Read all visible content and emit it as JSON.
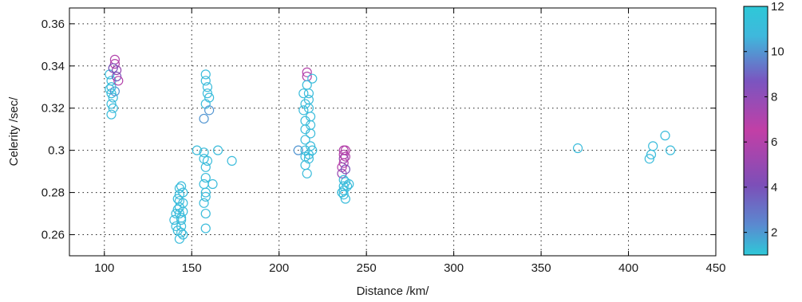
{
  "chart_data": {
    "type": "scatter",
    "title": "",
    "xlabel": "Distance /km/",
    "ylabel": "Celerity /sec/",
    "xlim": [
      80,
      450
    ],
    "ylim": [
      0.25,
      0.3675
    ],
    "xticks": [
      100,
      150,
      200,
      250,
      300,
      350,
      400,
      450
    ],
    "yticks": [
      0.26,
      0.28,
      0.3,
      0.32,
      0.34,
      0.36
    ],
    "ytick_labels": [
      "0.26",
      "0.28",
      "0.3",
      "0.32",
      "0.34",
      "0.36"
    ],
    "grid": true,
    "marker": "open-circle",
    "colorbar": {
      "range": [
        1,
        12
      ],
      "ticks": [
        2,
        4,
        6,
        8,
        10,
        12
      ],
      "colors": [
        "#2ec8d8",
        "#5a8ad0",
        "#7c4fb8",
        "#c23fa6",
        "#7a55c0",
        "#3fb8dc",
        "#2ec8d8"
      ],
      "stops": [
        0,
        0.12,
        0.28,
        0.5,
        0.7,
        0.88,
        1
      ]
    },
    "points": [
      {
        "x": 103,
        "y": 0.336,
        "c": 11
      },
      {
        "x": 104,
        "y": 0.333,
        "c": 11
      },
      {
        "x": 104,
        "y": 0.33,
        "c": 11
      },
      {
        "x": 104,
        "y": 0.327,
        "c": 11
      },
      {
        "x": 105,
        "y": 0.325,
        "c": 11
      },
      {
        "x": 104,
        "y": 0.322,
        "c": 11
      },
      {
        "x": 105,
        "y": 0.32,
        "c": 11
      },
      {
        "x": 104,
        "y": 0.317,
        "c": 11
      },
      {
        "x": 103,
        "y": 0.329,
        "c": 11
      },
      {
        "x": 106,
        "y": 0.328,
        "c": 10
      },
      {
        "x": 106,
        "y": 0.341,
        "c": 6
      },
      {
        "x": 107,
        "y": 0.338,
        "c": 5
      },
      {
        "x": 107,
        "y": 0.335,
        "c": 4
      },
      {
        "x": 108,
        "y": 0.333,
        "c": 6
      },
      {
        "x": 106,
        "y": 0.343,
        "c": 7
      },
      {
        "x": 105,
        "y": 0.339,
        "c": 4
      },
      {
        "x": 140,
        "y": 0.267,
        "c": 11
      },
      {
        "x": 141,
        "y": 0.264,
        "c": 11
      },
      {
        "x": 141,
        "y": 0.27,
        "c": 11
      },
      {
        "x": 142,
        "y": 0.262,
        "c": 11
      },
      {
        "x": 143,
        "y": 0.282,
        "c": 11
      },
      {
        "x": 143,
        "y": 0.279,
        "c": 11
      },
      {
        "x": 143,
        "y": 0.276,
        "c": 11
      },
      {
        "x": 143,
        "y": 0.273,
        "c": 11
      },
      {
        "x": 143,
        "y": 0.27,
        "c": 11
      },
      {
        "x": 144,
        "y": 0.267,
        "c": 11
      },
      {
        "x": 144,
        "y": 0.264,
        "c": 11
      },
      {
        "x": 144,
        "y": 0.261,
        "c": 11
      },
      {
        "x": 143,
        "y": 0.258,
        "c": 11
      },
      {
        "x": 144,
        "y": 0.283,
        "c": 11
      },
      {
        "x": 145,
        "y": 0.28,
        "c": 11
      },
      {
        "x": 145,
        "y": 0.275,
        "c": 11
      },
      {
        "x": 145,
        "y": 0.271,
        "c": 11
      },
      {
        "x": 144,
        "y": 0.268,
        "c": 11
      },
      {
        "x": 145,
        "y": 0.26,
        "c": 11
      },
      {
        "x": 142,
        "y": 0.277,
        "c": 11
      },
      {
        "x": 142,
        "y": 0.272,
        "c": 11
      },
      {
        "x": 153,
        "y": 0.3,
        "c": 11
      },
      {
        "x": 157,
        "y": 0.299,
        "c": 11
      },
      {
        "x": 157,
        "y": 0.296,
        "c": 11
      },
      {
        "x": 158,
        "y": 0.292,
        "c": 11
      },
      {
        "x": 158,
        "y": 0.287,
        "c": 11
      },
      {
        "x": 157,
        "y": 0.284,
        "c": 11
      },
      {
        "x": 158,
        "y": 0.28,
        "c": 11
      },
      {
        "x": 158,
        "y": 0.278,
        "c": 11
      },
      {
        "x": 157,
        "y": 0.275,
        "c": 11
      },
      {
        "x": 158,
        "y": 0.27,
        "c": 11
      },
      {
        "x": 158,
        "y": 0.263,
        "c": 11
      },
      {
        "x": 157,
        "y": 0.315,
        "c": 10
      },
      {
        "x": 158,
        "y": 0.336,
        "c": 11
      },
      {
        "x": 158,
        "y": 0.333,
        "c": 11
      },
      {
        "x": 159,
        "y": 0.33,
        "c": 11
      },
      {
        "x": 159,
        "y": 0.327,
        "c": 11
      },
      {
        "x": 160,
        "y": 0.325,
        "c": 11
      },
      {
        "x": 158,
        "y": 0.322,
        "c": 11
      },
      {
        "x": 160,
        "y": 0.319,
        "c": 10
      },
      {
        "x": 159,
        "y": 0.295,
        "c": 11
      },
      {
        "x": 162,
        "y": 0.284,
        "c": 11
      },
      {
        "x": 165,
        "y": 0.3,
        "c": 11
      },
      {
        "x": 173,
        "y": 0.295,
        "c": 11
      },
      {
        "x": 211,
        "y": 0.3,
        "c": 10
      },
      {
        "x": 214,
        "y": 0.327,
        "c": 11
      },
      {
        "x": 214,
        "y": 0.319,
        "c": 11
      },
      {
        "x": 215,
        "y": 0.322,
        "c": 11
      },
      {
        "x": 215,
        "y": 0.314,
        "c": 11
      },
      {
        "x": 215,
        "y": 0.31,
        "c": 11
      },
      {
        "x": 215,
        "y": 0.305,
        "c": 11
      },
      {
        "x": 215,
        "y": 0.3,
        "c": 11
      },
      {
        "x": 215,
        "y": 0.297,
        "c": 11
      },
      {
        "x": 215,
        "y": 0.293,
        "c": 11
      },
      {
        "x": 216,
        "y": 0.289,
        "c": 11
      },
      {
        "x": 216,
        "y": 0.335,
        "c": 7
      },
      {
        "x": 216,
        "y": 0.337,
        "c": 6
      },
      {
        "x": 216,
        "y": 0.331,
        "c": 11
      },
      {
        "x": 217,
        "y": 0.327,
        "c": 11
      },
      {
        "x": 217,
        "y": 0.324,
        "c": 11
      },
      {
        "x": 217,
        "y": 0.32,
        "c": 11
      },
      {
        "x": 218,
        "y": 0.316,
        "c": 11
      },
      {
        "x": 218,
        "y": 0.312,
        "c": 11
      },
      {
        "x": 218,
        "y": 0.308,
        "c": 11
      },
      {
        "x": 219,
        "y": 0.334,
        "c": 11
      },
      {
        "x": 218,
        "y": 0.302,
        "c": 11
      },
      {
        "x": 217,
        "y": 0.298,
        "c": 11
      },
      {
        "x": 217,
        "y": 0.296,
        "c": 11
      },
      {
        "x": 219,
        "y": 0.3,
        "c": 11
      },
      {
        "x": 236,
        "y": 0.292,
        "c": 6
      },
      {
        "x": 236,
        "y": 0.289,
        "c": 5
      },
      {
        "x": 237,
        "y": 0.3,
        "c": 6
      },
      {
        "x": 237,
        "y": 0.298,
        "c": 6
      },
      {
        "x": 237,
        "y": 0.296,
        "c": 5
      },
      {
        "x": 237,
        "y": 0.294,
        "c": 6
      },
      {
        "x": 238,
        "y": 0.3,
        "c": 6
      },
      {
        "x": 238,
        "y": 0.297,
        "c": 7
      },
      {
        "x": 238,
        "y": 0.291,
        "c": 4
      },
      {
        "x": 237,
        "y": 0.286,
        "c": 11
      },
      {
        "x": 237,
        "y": 0.283,
        "c": 11
      },
      {
        "x": 237,
        "y": 0.281,
        "c": 11
      },
      {
        "x": 237,
        "y": 0.279,
        "c": 11
      },
      {
        "x": 238,
        "y": 0.277,
        "c": 11
      },
      {
        "x": 238,
        "y": 0.285,
        "c": 11
      },
      {
        "x": 239,
        "y": 0.283,
        "c": 11
      },
      {
        "x": 240,
        "y": 0.284,
        "c": 11
      },
      {
        "x": 236,
        "y": 0.28,
        "c": 11
      },
      {
        "x": 371,
        "y": 0.301,
        "c": 11
      },
      {
        "x": 412,
        "y": 0.296,
        "c": 11
      },
      {
        "x": 413,
        "y": 0.298,
        "c": 11
      },
      {
        "x": 414,
        "y": 0.302,
        "c": 11
      },
      {
        "x": 421,
        "y": 0.307,
        "c": 11
      },
      {
        "x": 424,
        "y": 0.3,
        "c": 11
      }
    ]
  }
}
